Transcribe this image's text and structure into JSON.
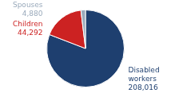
{
  "chart_data": {
    "type": "pie",
    "categories": [
      "Disabled workers",
      "Children",
      "Spouses"
    ],
    "values": [
      208016,
      44292,
      4880
    ],
    "value_labels": [
      "208,016",
      "44,292",
      "4,880"
    ],
    "colors": [
      "#1e3f6f",
      "#cc2222",
      "#9aaabb"
    ],
    "data_labels": true,
    "legend": false
  }
}
